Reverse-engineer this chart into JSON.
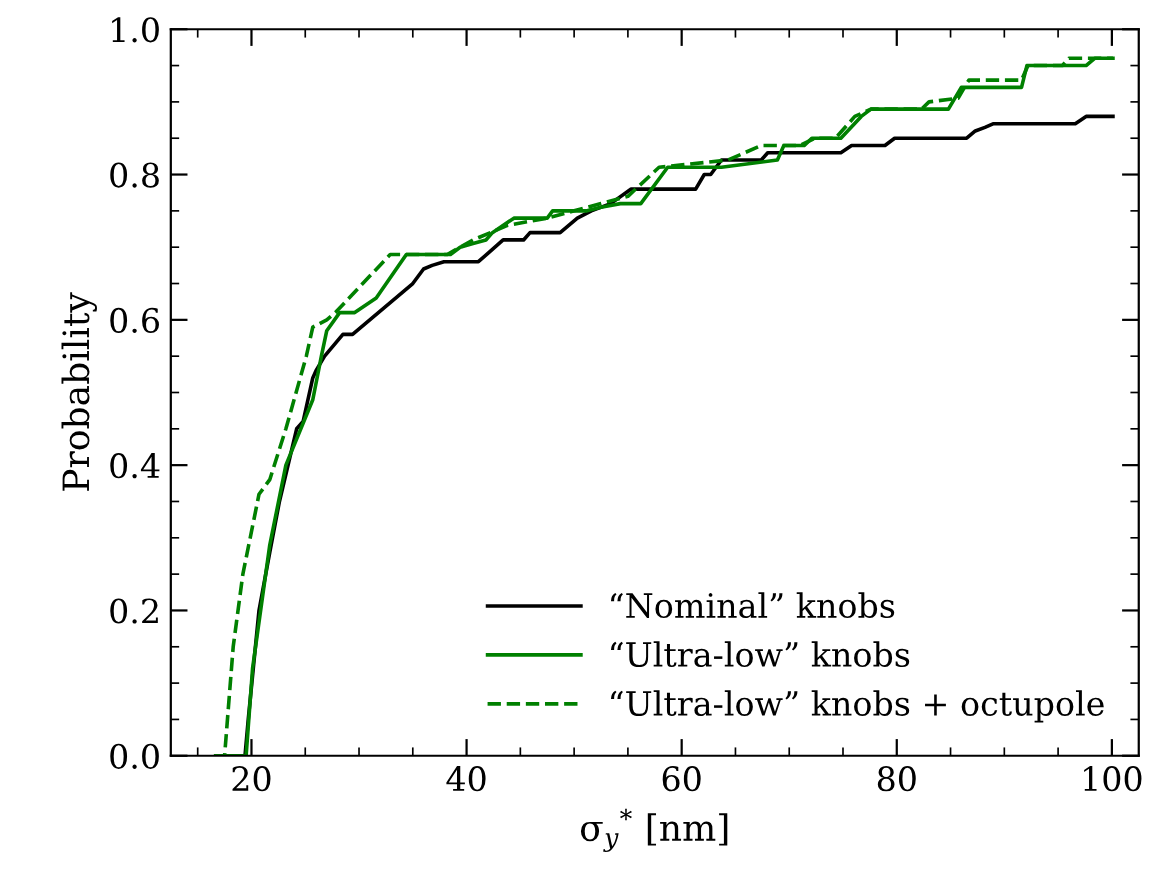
{
  "chart_data": {
    "type": "line",
    "xlabel": "σ$_{y}$$^{*}$ [nm]",
    "ylabel": "Probability",
    "xlim": [
      12.5,
      102.5
    ],
    "ylim": [
      0,
      1
    ],
    "xticks": [
      20,
      40,
      60,
      80,
      100
    ],
    "yticks": [
      {
        "value": 0,
        "label": "0.0"
      },
      {
        "value": 0.2,
        "label": "0.2"
      },
      {
        "value": 0.4,
        "label": "0.4"
      },
      {
        "value": 0.6,
        "label": "0.6"
      },
      {
        "value": 0.8,
        "label": "0.8"
      },
      {
        "value": 1,
        "label": "1.0"
      }
    ],
    "grid": false,
    "legend": "bottom right",
    "marker": "none",
    "series": [
      {
        "name": "“Nominal” knobs",
        "color": "#000000",
        "line_style": "solid",
        "x": [
          17,
          19.4,
          19.7,
          20.7,
          21.7,
          22.6,
          24.2,
          24.8,
          25.7,
          26,
          26.8,
          28.5,
          29.4,
          35,
          36,
          36.8,
          37.9,
          41.1,
          43.4,
          45.3,
          45.9,
          48.7,
          50.3,
          51.6,
          53.4,
          55.3,
          61.3,
          62.1,
          62.7,
          63.7,
          67.4,
          68,
          74.8,
          75.8,
          78.9,
          79.8,
          86.5,
          87.3,
          88.2,
          89,
          96.6,
          97.6,
          100.1
        ],
        "values": [
          0,
          0,
          0.05,
          0.2,
          0.28,
          0.35,
          0.45,
          0.46,
          0.52,
          0.53,
          0.55,
          0.58,
          0.58,
          0.65,
          0.67,
          0.675,
          0.68,
          0.68,
          0.71,
          0.71,
          0.72,
          0.72,
          0.74,
          0.75,
          0.76,
          0.78,
          0.78,
          0.8,
          0.8,
          0.82,
          0.82,
          0.83,
          0.83,
          0.84,
          0.84,
          0.85,
          0.85,
          0.86,
          0.865,
          0.87,
          0.87,
          0.88,
          0.88
        ]
      },
      {
        "name": "“Ultra-low” knobs",
        "color": "#008000",
        "line_style": "solid",
        "x": [
          17,
          19.5,
          20.1,
          21.7,
          23.2,
          25.7,
          26.5,
          27,
          28.2,
          29.6,
          31.6,
          34.4,
          38.5,
          39.4,
          40.6,
          41.8,
          42.4,
          44.4,
          47.5,
          48,
          51.2,
          52.5,
          54.3,
          56.2,
          58.7,
          63.7,
          68.9,
          69.5,
          71.4,
          72.1,
          74.8,
          76.7,
          77.6,
          84.8,
          86,
          91.6,
          92.1,
          97.6,
          98.4,
          100.1
        ],
        "values": [
          0,
          0,
          0.12,
          0.29,
          0.4,
          0.49,
          0.55,
          0.585,
          0.61,
          0.61,
          0.63,
          0.69,
          0.69,
          0.7,
          0.705,
          0.71,
          0.72,
          0.74,
          0.74,
          0.75,
          0.75,
          0.755,
          0.76,
          0.76,
          0.81,
          0.81,
          0.82,
          0.84,
          0.84,
          0.85,
          0.85,
          0.88,
          0.89,
          0.89,
          0.92,
          0.92,
          0.95,
          0.95,
          0.96,
          0.96
        ]
      },
      {
        "name": "“Ultra-low” knobs + octupole",
        "color": "#008000",
        "line_style": "dashed",
        "x": [
          16.5,
          17.5,
          18.3,
          19.2,
          20.7,
          21.7,
          23.2,
          25.1,
          25.7,
          27,
          27.8,
          32.9,
          38.2,
          40.6,
          43.8,
          47.5,
          50,
          52.5,
          55,
          57.9,
          64.3,
          67.4,
          71,
          72.4,
          74.3,
          76.1,
          77.6,
          82.3,
          83,
          85.7,
          86.7,
          91.6,
          92.2,
          95.4,
          96,
          100.1
        ],
        "values": [
          0,
          0,
          0.15,
          0.25,
          0.36,
          0.38,
          0.45,
          0.55,
          0.59,
          0.6,
          0.61,
          0.69,
          0.69,
          0.71,
          0.73,
          0.74,
          0.75,
          0.76,
          0.77,
          0.81,
          0.82,
          0.84,
          0.84,
          0.85,
          0.85,
          0.88,
          0.89,
          0.89,
          0.9,
          0.905,
          0.93,
          0.93,
          0.95,
          0.95,
          0.96,
          0.96
        ]
      }
    ]
  }
}
